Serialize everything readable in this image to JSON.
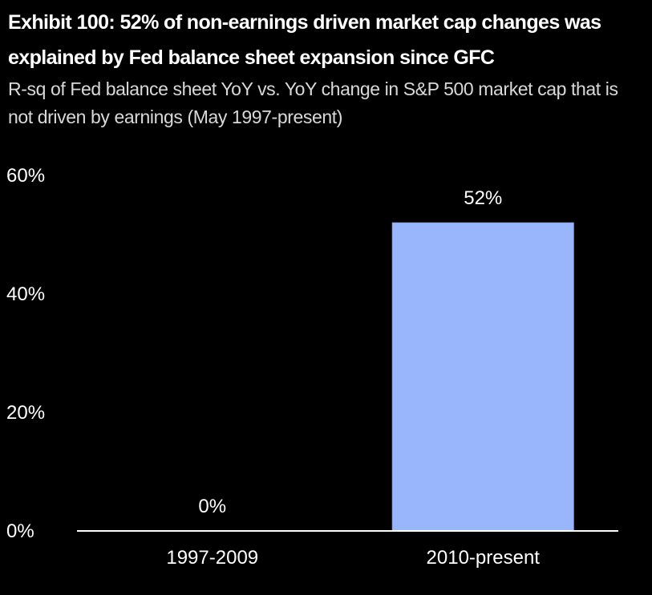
{
  "header": {
    "title": "Exhibit 100: 52% of non-earnings driven market cap changes was explained by Fed balance sheet expansion since GFC",
    "subtitle": "R-sq of Fed balance sheet YoY vs. YoY change in S&P 500 market cap that is not driven by earnings (May 1997-present)"
  },
  "chart_data": {
    "type": "bar",
    "title": "Exhibit 100: 52% of non-earnings driven market cap changes was explained by Fed balance sheet expansion since GFC",
    "subtitle": "R-sq of Fed balance sheet YoY vs. YoY change in S&P 500 market cap that is not driven by earnings (May 1997-present)",
    "categories": [
      "1997-2009",
      "2010-present"
    ],
    "values": [
      0,
      52
    ],
    "data_labels": [
      "0%",
      "52%"
    ],
    "xlabel": "",
    "ylabel": "",
    "ylim": [
      0,
      60
    ],
    "yticks": [
      0,
      20,
      40,
      60
    ],
    "ytick_labels": [
      "0%",
      "20%",
      "40%",
      "60%"
    ],
    "grid": false,
    "legend": "none",
    "colors": {
      "background": "#000000",
      "bar": "#99b5fb",
      "bar_edge": "#86a3ee",
      "axis": "#ffffff",
      "text": "#ffffff",
      "subtitle_text": "#d9d9d9"
    }
  }
}
